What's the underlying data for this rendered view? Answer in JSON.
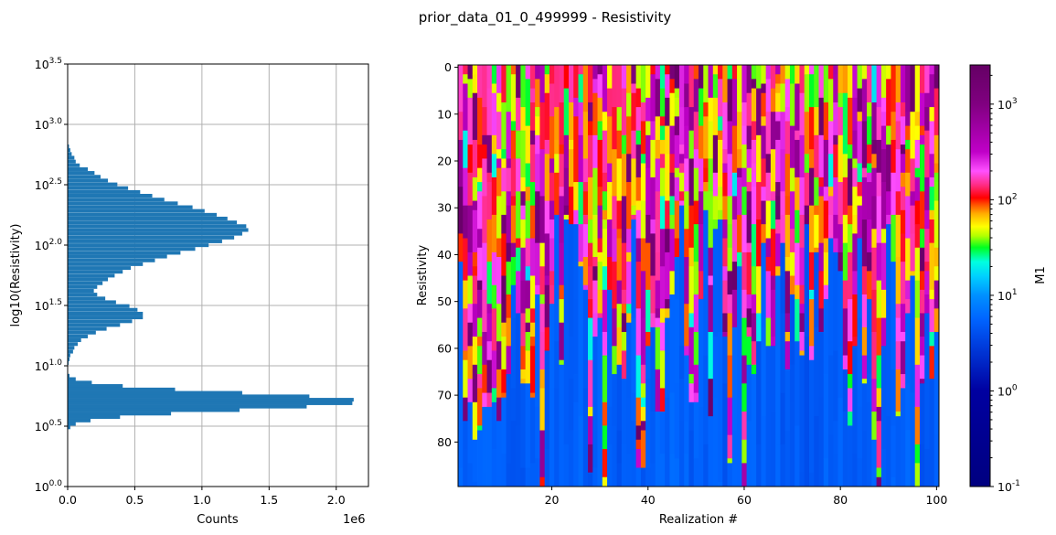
{
  "figure": {
    "title": "prior_data_01_0_499999 - Resistivity"
  },
  "chart_data": [
    {
      "type": "bar",
      "orientation": "horizontal",
      "xlabel": "Counts",
      "ylabel": "log10(Resistivity)",
      "x_offset_label": "1e6",
      "xlim": [
        0,
        2.24
      ],
      "ylim": [
        0.0,
        3.5
      ],
      "grid": true,
      "x_ticks": [
        "0.0",
        "0.5",
        "1.0",
        "1.5",
        "2.0"
      ],
      "y_tick_base": "10",
      "y_tick_exponents": [
        "0.0",
        "0.5",
        "1.0",
        "1.5",
        "2.0",
        "2.5",
        "3.0",
        "3.5"
      ],
      "bar_color": "#1f77b4",
      "bin_width_log10": 0.0305,
      "log10_bin_centers": [
        2.818,
        2.787,
        2.755,
        2.724,
        2.692,
        2.661,
        2.629,
        2.598,
        2.566,
        2.535,
        2.503,
        2.472,
        2.44,
        2.409,
        2.377,
        2.346,
        2.314,
        2.283,
        2.251,
        2.22,
        2.188,
        2.157,
        2.125,
        2.094,
        2.062,
        2.031,
        1.999,
        1.968,
        1.936,
        1.905,
        1.873,
        1.842,
        1.81,
        1.779,
        1.747,
        1.716,
        1.684,
        1.653,
        1.621,
        1.59,
        1.558,
        1.527,
        1.495,
        1.464,
        1.432,
        1.401,
        1.369,
        1.338,
        1.306,
        1.275,
        1.243,
        1.212,
        1.18,
        1.149,
        1.117,
        1.086,
        1.054,
        1.023,
        0.918,
        0.89,
        0.861,
        0.833,
        0.804,
        0.776,
        0.747,
        0.719,
        0.69,
        0.662,
        0.633,
        0.604,
        0.576,
        0.547,
        0.519,
        0.49
      ],
      "counts_x1e6": [
        0.01,
        0.02,
        0.03,
        0.05,
        0.06,
        0.09,
        0.15,
        0.2,
        0.245,
        0.3,
        0.37,
        0.45,
        0.54,
        0.63,
        0.72,
        0.82,
        0.93,
        1.02,
        1.11,
        1.19,
        1.26,
        1.33,
        1.345,
        1.3,
        1.24,
        1.15,
        1.05,
        0.95,
        0.84,
        0.74,
        0.65,
        0.56,
        0.47,
        0.41,
        0.35,
        0.3,
        0.26,
        0.22,
        0.195,
        0.22,
        0.28,
        0.36,
        0.46,
        0.52,
        0.56,
        0.56,
        0.48,
        0.39,
        0.29,
        0.21,
        0.15,
        0.1,
        0.075,
        0.05,
        0.04,
        0.02,
        0.014,
        0.007,
        0.014,
        0.06,
        0.18,
        0.41,
        0.8,
        1.3,
        1.8,
        2.13,
        2.12,
        1.78,
        1.28,
        0.77,
        0.39,
        0.17,
        0.06,
        0.02
      ]
    },
    {
      "type": "heatmap",
      "xlabel": "Realization #",
      "ylabel": "Resistivity",
      "x_ticks": [
        "20",
        "40",
        "60",
        "80",
        "100"
      ],
      "y_ticks": [
        "0",
        "10",
        "20",
        "30",
        "40",
        "50",
        "60",
        "70",
        "80"
      ],
      "xlim": [
        0.5,
        100.5
      ],
      "ylim": [
        89.5,
        -0.5
      ],
      "n_realizations": 100,
      "n_layers": 90,
      "color_scale": "log",
      "colorbar": {
        "label": "M1",
        "range": [
          0.1,
          2570
        ],
        "tick_base": "10",
        "tick_exponents": [
          "3",
          "2",
          "1",
          "0",
          "-1"
        ],
        "colormap_stops": [
          {
            "log10": -1.0,
            "color": "#000080"
          },
          {
            "log10": 0.0,
            "color": "#0000a0"
          },
          {
            "log10": 0.5,
            "color": "#0040e0"
          },
          {
            "log10": 0.75,
            "color": "#0064ff"
          },
          {
            "log10": 1.0,
            "color": "#0090ff"
          },
          {
            "log10": 1.2,
            "color": "#00d0ff"
          },
          {
            "log10": 1.35,
            "color": "#00ffe0"
          },
          {
            "log10": 1.5,
            "color": "#00ff20"
          },
          {
            "log10": 1.62,
            "color": "#b0ff00"
          },
          {
            "log10": 1.72,
            "color": "#ffff00"
          },
          {
            "log10": 1.85,
            "color": "#ffb000"
          },
          {
            "log10": 1.95,
            "color": "#ff5000"
          },
          {
            "log10": 2.02,
            "color": "#ff0000"
          },
          {
            "log10": 2.15,
            "color": "#ff2a80"
          },
          {
            "log10": 2.3,
            "color": "#ff50ff"
          },
          {
            "log10": 2.5,
            "color": "#c000c8"
          },
          {
            "log10": 3.0,
            "color": "#800080"
          },
          {
            "log10": 3.41,
            "color": "#640064"
          }
        ]
      },
      "basement_top_layer": [
        42,
        76,
        72,
        80,
        78,
        73,
        73,
        72,
        76,
        71,
        66,
        47,
        53,
        68,
        68,
        71,
        49,
        90,
        61,
        51,
        32,
        64,
        33,
        34,
        34,
        43,
        48,
        87,
        58,
        54,
        90,
        48,
        66,
        64,
        67,
        55,
        33,
        86,
        86,
        60,
        56,
        74,
        74,
        54,
        49,
        41,
        30,
        62,
        72,
        72,
        50,
        31,
        75,
        35,
        33,
        58,
        85,
        56,
        43,
        90,
        64,
        66,
        59,
        38,
        60,
        60,
        45,
        38,
        65,
        49,
        59,
        62,
        34,
        63,
        40,
        57,
        50,
        37,
        40,
        44,
        65,
        77,
        60,
        37,
        68,
        50,
        80,
        90,
        60,
        34,
        42,
        75,
        69,
        53,
        45,
        90,
        68,
        53,
        67,
        57
      ]
    }
  ]
}
